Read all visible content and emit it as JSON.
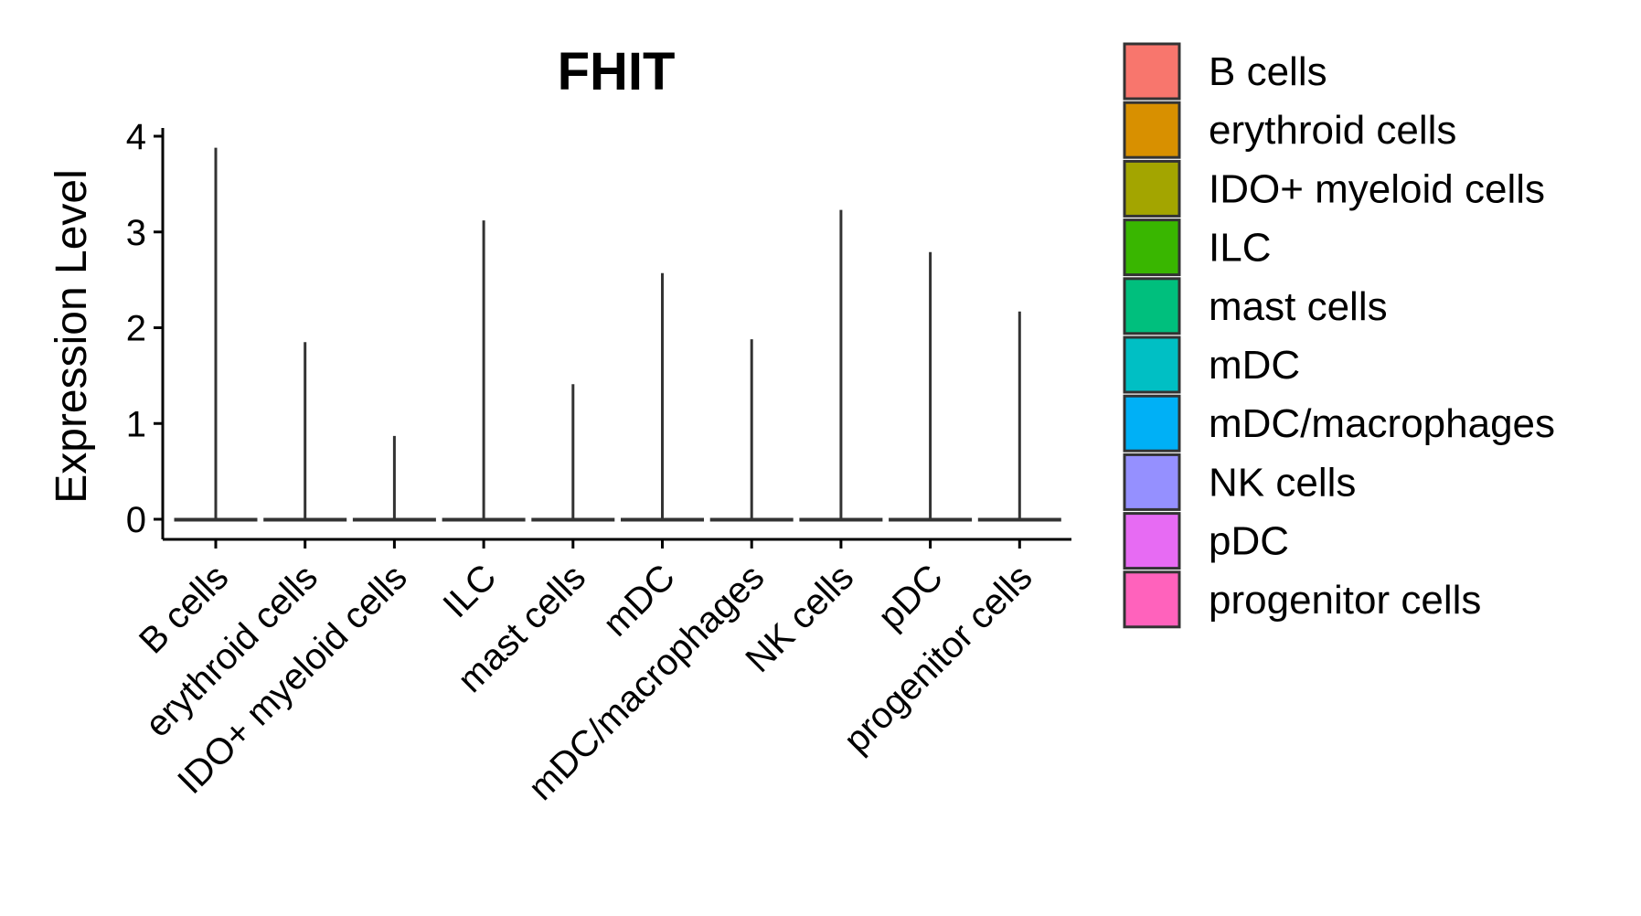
{
  "chart_data": {
    "type": "violin",
    "title": "FHIT",
    "xlabel": "",
    "ylabel": "Expression Level",
    "ylim": [
      0,
      4
    ],
    "yticks": [
      0,
      1,
      2,
      3,
      4
    ],
    "categories": [
      "B cells",
      "erythroid cells",
      "IDO+ myeloid cells",
      "ILC",
      "mast cells",
      "mDC",
      "mDC/macrophages",
      "NK cells",
      "pDC",
      "progenitor cells"
    ],
    "max_values": [
      3.88,
      1.85,
      0.87,
      3.12,
      1.41,
      2.57,
      1.88,
      3.23,
      2.79,
      2.17
    ],
    "min_values": [
      0,
      0,
      0,
      0,
      0,
      0,
      0,
      0,
      0,
      0
    ],
    "colors": [
      "#F8766D",
      "#D89000",
      "#A3A500",
      "#39B600",
      "#00BF7D",
      "#00BFC4",
      "#00B0F6",
      "#9590FF",
      "#E76BF3",
      "#FF62BC"
    ],
    "legend": {
      "position": "right",
      "entries": [
        "B cells",
        "erythroid cells",
        "IDO+ myeloid cells",
        "ILC",
        "mast cells",
        "mDC",
        "mDC/macrophages",
        "NK cells",
        "pDC",
        "progenitor cells"
      ]
    }
  }
}
